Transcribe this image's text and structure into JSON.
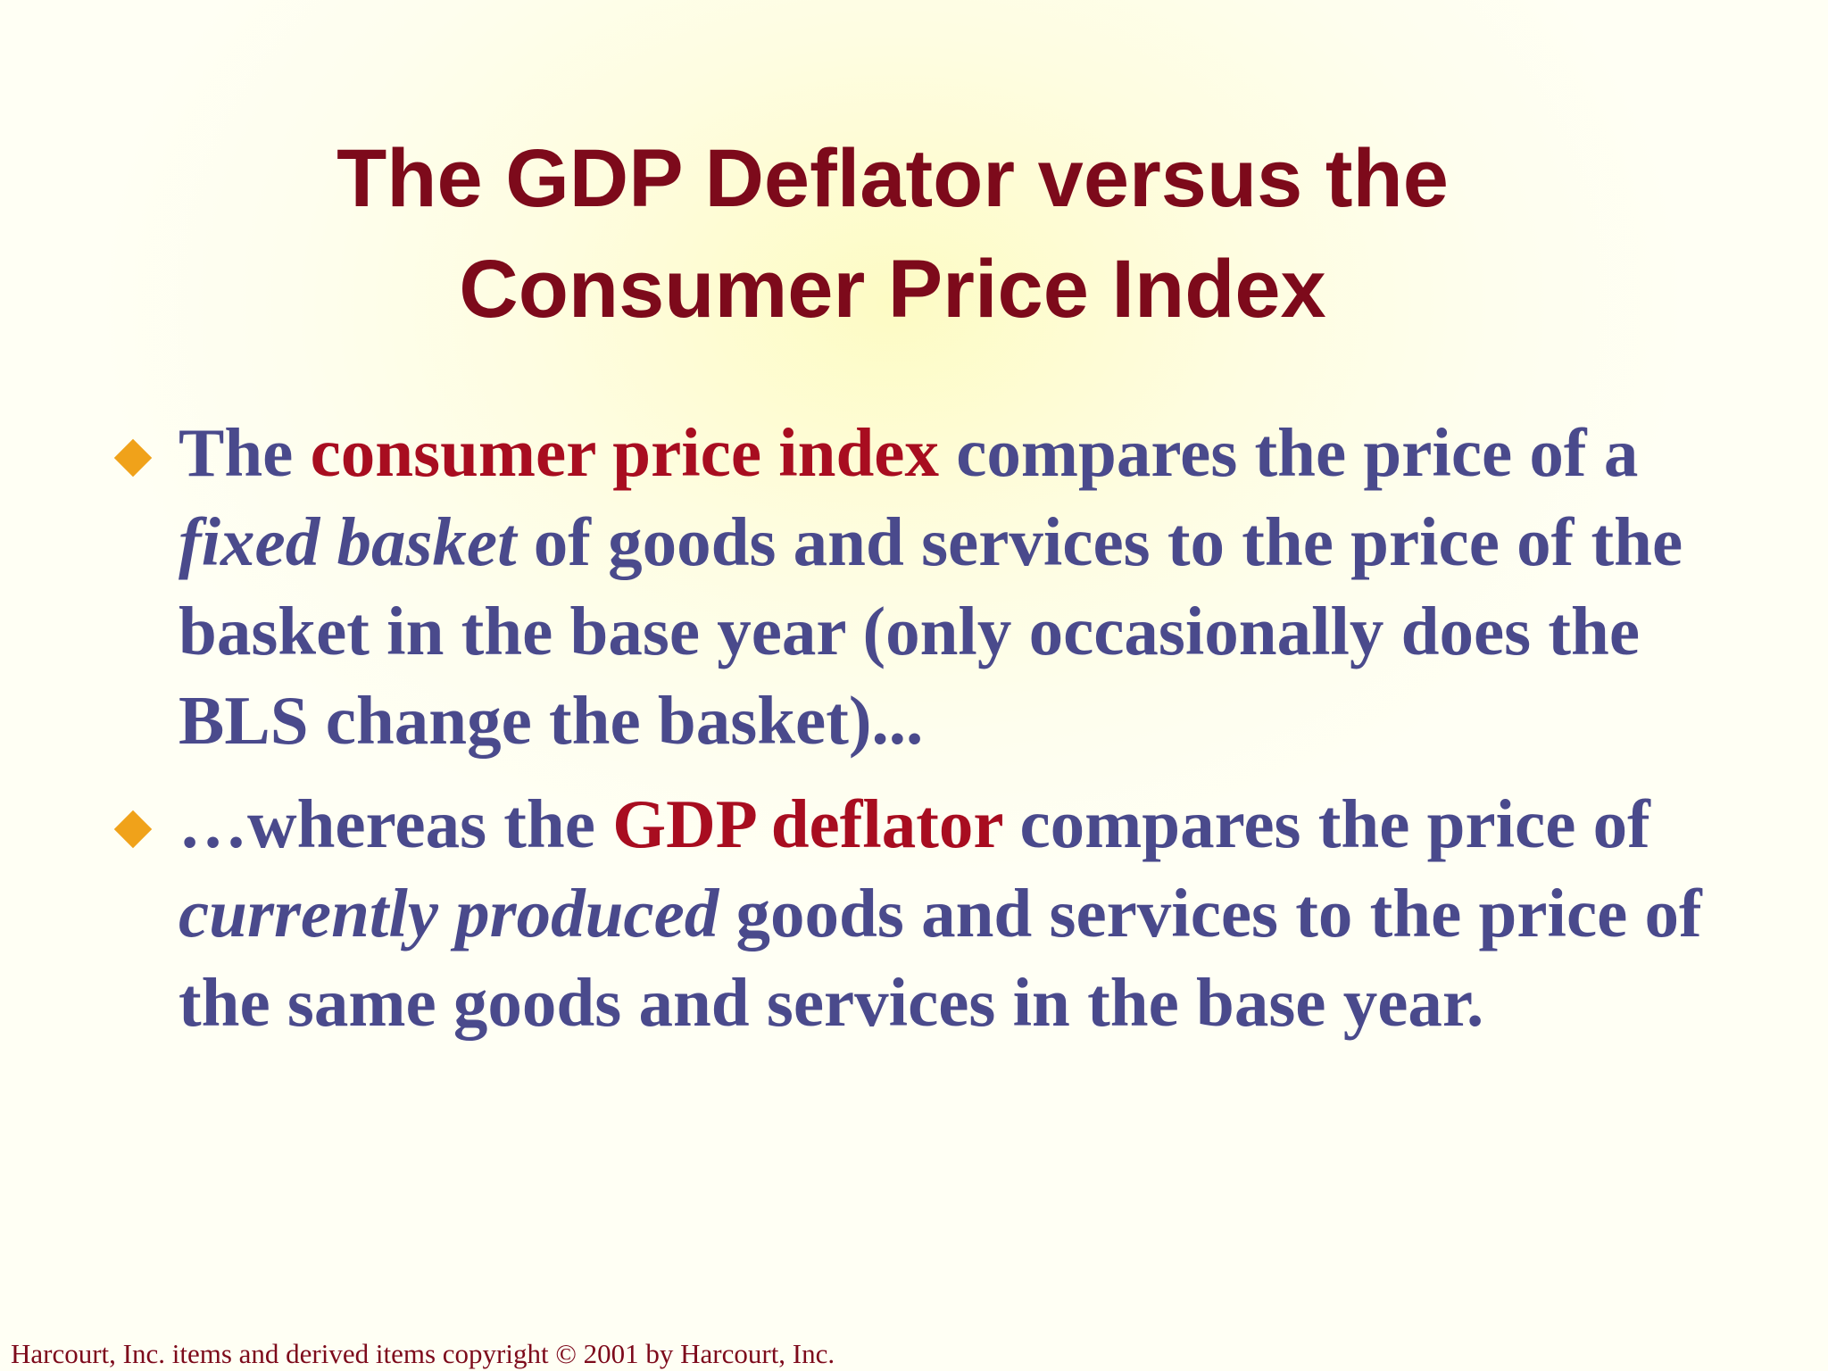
{
  "title": {
    "line1": "The GDP Deflator versus the",
    "line2": "Consumer Price Index"
  },
  "bullets": [
    {
      "parts": [
        {
          "text": "The ",
          "style": "plain"
        },
        {
          "text": "consumer price index",
          "style": "term"
        },
        {
          "text": " compares the price of a ",
          "style": "plain"
        },
        {
          "text": "fixed basket",
          "style": "emphasis"
        },
        {
          "text": " of goods and services to the price of the basket in the base year (only occasionally does the BLS change the basket)...",
          "style": "plain"
        }
      ]
    },
    {
      "parts": [
        {
          "text": "…whereas the ",
          "style": "plain"
        },
        {
          "text": "GDP deflator",
          "style": "term"
        },
        {
          "text": " compares the price of ",
          "style": "plain"
        },
        {
          "text": "currently produced",
          "style": "emphasis"
        },
        {
          "text": " goods and services to the price of the same goods and services in the base year.",
          "style": "plain"
        }
      ]
    }
  ],
  "footer": "Harcourt, Inc. items and derived items copyright © 2001 by Harcourt, Inc.",
  "icons": {
    "bullet": "diamond-bullet-icon"
  },
  "colors": {
    "title": "#7d0a1b",
    "body_text": "#4a4a8c",
    "term": "#a80d20",
    "bullet": "#f0a21a",
    "background": "#fefde6"
  }
}
